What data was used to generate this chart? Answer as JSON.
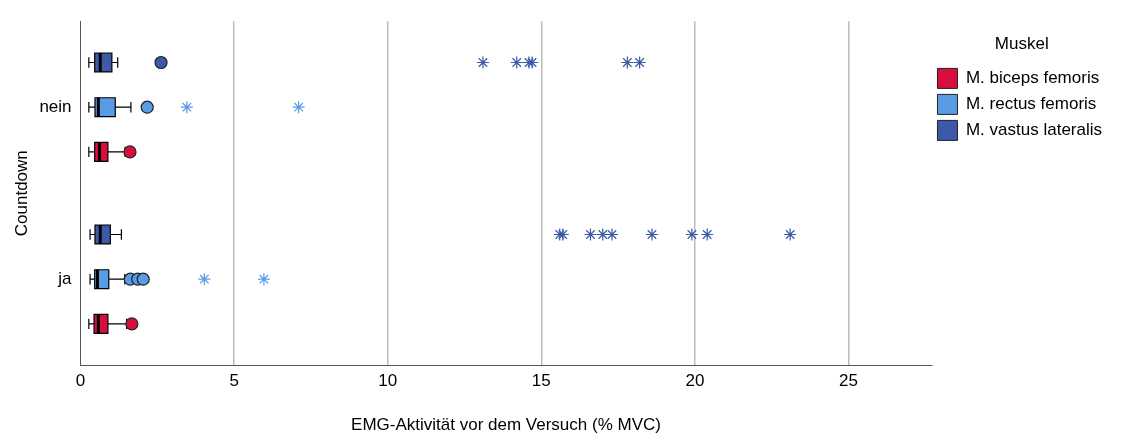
{
  "chart_data": {
    "type": "box",
    "orientation": "horizontal",
    "xlabel": "EMG-Aktivität vor dem Versuch (% MVC)",
    "ylabel": "Countdown",
    "legend_title": "Muskel",
    "legend": "right",
    "grid": "x",
    "categories": [
      "nein",
      "ja"
    ],
    "xlim": [
      0,
      27.7
    ],
    "xticks": [
      0,
      5,
      10,
      15,
      20,
      25
    ],
    "series": [
      {
        "name": "M. biceps femoris",
        "color": "#d80e3c",
        "boxes": [
          {
            "low": 0.27,
            "q1": 0.46,
            "median": 0.62,
            "q3": 0.89,
            "high": 1.45,
            "outliers": [
              1.61
            ]
          },
          {
            "low": 0.27,
            "q1": 0.44,
            "median": 0.58,
            "q3": 0.89,
            "high": 1.5,
            "outliers": [
              1.67
            ]
          }
        ]
      },
      {
        "name": "M. rectus femoris",
        "color": "#5a9be6",
        "boxes": [
          {
            "low": 0.27,
            "q1": 0.47,
            "median": 0.58,
            "q3": 1.13,
            "high": 1.64,
            "outliers": [
              2.17,
              3.46,
              7.1
            ]
          },
          {
            "low": 0.31,
            "q1": 0.46,
            "median": 0.55,
            "q3": 0.92,
            "high": 1.44,
            "outliers": [
              1.62,
              1.86,
              2.04,
              4.03,
              5.97
            ]
          }
        ]
      },
      {
        "name": "M. vastus lateralis",
        "color": "#3c5aa8",
        "boxes": [
          {
            "low": 0.27,
            "q1": 0.46,
            "median": 0.64,
            "q3": 1.02,
            "high": 1.21,
            "outliers": [
              2.62,
              13.1,
              14.2,
              14.6,
              14.7,
              17.8,
              18.2
            ]
          },
          {
            "low": 0.31,
            "q1": 0.47,
            "median": 0.64,
            "q3": 0.97,
            "high": 1.33,
            "outliers": [
              15.6,
              15.7,
              16.6,
              17.0,
              17.3,
              18.6,
              19.9,
              20.4,
              23.1
            ]
          }
        ]
      }
    ]
  }
}
